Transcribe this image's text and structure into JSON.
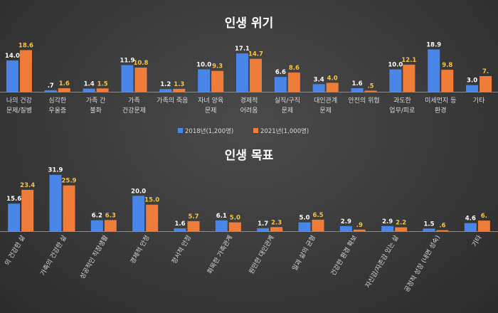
{
  "colors": {
    "series_a": "#4a86e8",
    "series_b": "#f07c3a",
    "axis": "#8c8c8c"
  },
  "chart_data": [
    {
      "type": "bar",
      "title": "인생 위기",
      "categories": [
        "나의 건강\n문제/질병",
        "심각한\n우울증",
        "가족 간\n불화",
        "가족\n건강문제",
        "가족의 죽음",
        "자녀 양육\n문제",
        "경제적\n어려움",
        "실직/구직\n문제",
        "대인관계\n문제",
        "안전의 위협",
        "과도한\n업무/피로",
        "미세먼지 등\n환경",
        "기타"
      ],
      "series": [
        {
          "name": "2018년(1,200명)",
          "values": [
            14.0,
            0.7,
            1.4,
            11.9,
            1.2,
            10.0,
            17.1,
            6.6,
            3.4,
            1.6,
            10.0,
            18.9,
            3.0
          ]
        },
        {
          "name": "2021년(1,000명)",
          "values": [
            18.6,
            1.6,
            1.5,
            10.8,
            1.3,
            9.3,
            14.7,
            8.6,
            4.0,
            0.5,
            12.1,
            9.8,
            7.0
          ]
        }
      ],
      "value_labels": [
        [
          "14.0",
          ".7",
          "1.4",
          "11.9",
          "1.2",
          "10.0",
          "17.1",
          "6.6",
          "3.4",
          "1.6",
          "10.0",
          "18.9",
          "3.0"
        ],
        [
          "18.6",
          "1.6",
          "1.5",
          "10.8",
          "1.3",
          "9.3",
          "14.7",
          "8.6",
          "4.0",
          ".5",
          "12.1",
          "9.8",
          "7."
        ]
      ],
      "ylim": [
        0,
        20
      ],
      "grid": false,
      "legend": "bottom"
    },
    {
      "type": "bar",
      "title": "인생 목표",
      "categories": [
        "의 건강한 삶",
        "가족의 건강한 삶",
        "성공적인 직장생활",
        "경제적 안정",
        "정서적 안정",
        "화목한 가족관계",
        "원만한 대인관계",
        "일과 삶의 균형",
        "건강한 환경 확보",
        "자신감/자존감 있는 삶",
        "공정적 성장 (내면 성숙)",
        "기타"
      ],
      "series": [
        {
          "name": "2018년(1,200명)",
          "values": [
            15.6,
            31.9,
            6.2,
            20.0,
            1.6,
            6.1,
            1.7,
            5.0,
            2.9,
            2.9,
            1.5,
            4.6
          ]
        },
        {
          "name": "2021년(1,000명)",
          "values": [
            23.4,
            25.9,
            6.3,
            15.0,
            5.7,
            5.0,
            2.3,
            6.5,
            0.9,
            2.2,
            0.6,
            6.0
          ]
        }
      ],
      "value_labels": [
        [
          "15.6",
          "31.9",
          "6.2",
          "20.0",
          "1.6",
          "6.1",
          "1.7",
          "5.0",
          "2.9",
          "2.9",
          "1.5",
          "4.6"
        ],
        [
          "23.4",
          "25.9",
          "6.3",
          "15.0",
          "5.7",
          "5.0",
          "2.3",
          "6.5",
          ".9",
          "2.2",
          ".6",
          "6."
        ]
      ],
      "ylim": [
        0,
        33
      ],
      "grid": false
    }
  ]
}
